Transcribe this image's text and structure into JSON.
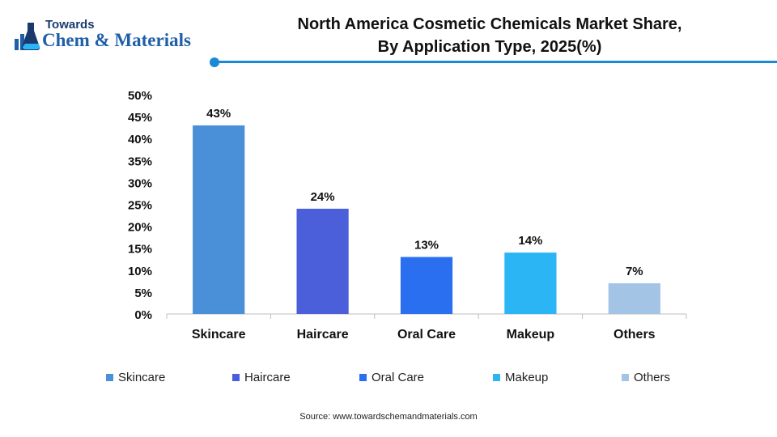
{
  "logo": {
    "line1": "Towards",
    "line2": "Chem & Materials"
  },
  "title": {
    "line1": "North America Cosmetic Chemicals Market Share,",
    "line2": "By Application Type, 2025(%)"
  },
  "source": "Source: www.towardschemandmaterials.com",
  "colors": {
    "accent": "#1a8ad6",
    "Skincare": "#4a90d9",
    "Haircare": "#4a5fd9",
    "Oral Care": "#2a6ff0",
    "Makeup": "#2bb5f5",
    "Others": "#a4c4e6"
  },
  "chart_data": {
    "type": "bar",
    "title": "North America Cosmetic Chemicals Market Share, By Application Type, 2025(%)",
    "categories": [
      "Skincare",
      "Haircare",
      "Oral Care",
      "Makeup",
      "Others"
    ],
    "values": [
      43,
      24,
      13,
      14,
      7
    ],
    "data_labels": [
      "43%",
      "24%",
      "13%",
      "14%",
      "7%"
    ],
    "yticks": [
      "0%",
      "5%",
      "10%",
      "15%",
      "20%",
      "25%",
      "30%",
      "35%",
      "40%",
      "45%",
      "50%"
    ],
    "ylim": [
      0,
      50
    ],
    "xlabel": "",
    "ylabel": "",
    "grid": false,
    "legend": "bottom",
    "legend_entries": [
      "Skincare",
      "Haircare",
      "Oral Care",
      "Makeup",
      "Others"
    ]
  }
}
